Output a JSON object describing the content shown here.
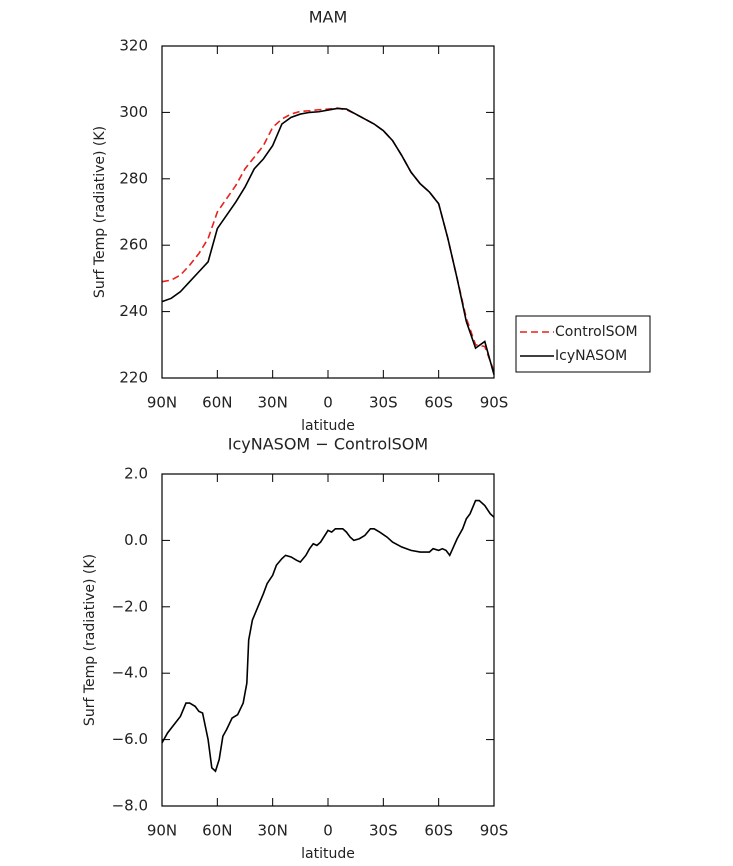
{
  "chart_data": [
    {
      "type": "line",
      "title": "MAM",
      "xlabel": "latitude",
      "ylabel": "Surf Temp (radiative) (K)",
      "x": [
        90,
        85,
        80,
        75,
        70,
        65,
        60,
        55,
        50,
        45,
        40,
        35,
        30,
        25,
        20,
        15,
        10,
        5,
        0,
        -5,
        -10,
        -15,
        -20,
        -25,
        -30,
        -35,
        -40,
        -45,
        -50,
        -55,
        -60,
        -65,
        -70,
        -75,
        -80,
        -85,
        -90
      ],
      "series": [
        {
          "name": "ControlSOM",
          "color": "#e8211b",
          "dash": true,
          "values": [
            249,
            249.5,
            251,
            254,
            257.5,
            262,
            270,
            274,
            278,
            283,
            286.5,
            290,
            295.5,
            298,
            299.5,
            300.3,
            300.5,
            300.8,
            301,
            301.3,
            300.8,
            299.5,
            298,
            296.5,
            294.5,
            291.5,
            287,
            282,
            278.5,
            276,
            272.5,
            262,
            250,
            238,
            230,
            229.5,
            222
          ]
        },
        {
          "name": "IcyNASOM",
          "color": "#000000",
          "dash": false,
          "values": [
            243,
            244,
            246,
            249,
            252,
            255,
            265,
            269,
            273,
            277.5,
            283,
            286,
            290,
            296.5,
            298.5,
            299.5,
            300,
            300.2,
            300.7,
            301.2,
            301,
            299.5,
            298,
            296.5,
            294.5,
            291.5,
            287,
            282,
            278.5,
            276,
            272.5,
            262,
            250,
            237,
            229,
            231,
            221
          ]
        }
      ],
      "xlim": [
        90,
        -90
      ],
      "xticks": [
        {
          "value": 90,
          "label": "90N"
        },
        {
          "value": 60,
          "label": "60N"
        },
        {
          "value": 30,
          "label": "30N"
        },
        0,
        {
          "value": -30,
          "label": "30S"
        },
        {
          "value": -60,
          "label": "60S"
        },
        {
          "value": -90,
          "label": "90S"
        }
      ],
      "ylim": [
        220,
        320
      ],
      "yticks": [
        220,
        240,
        260,
        280,
        300,
        320
      ],
      "legend": "right"
    },
    {
      "type": "line",
      "title": "IcyNASOM − ControlSOM",
      "xlabel": "latitude",
      "ylabel": "Surf Temp (radiative) (K)",
      "x": [
        90,
        87,
        80,
        77,
        75,
        72,
        70,
        68,
        65,
        63,
        61,
        59,
        57,
        55,
        52,
        49,
        46,
        44,
        43,
        41,
        38,
        35,
        33,
        30,
        28,
        25,
        23,
        20,
        17,
        15,
        12,
        10,
        8,
        6,
        4,
        0,
        -2,
        -4,
        -8,
        -10,
        -12,
        -14,
        -17,
        -20,
        -23,
        -25,
        -28,
        -32,
        -35,
        -40,
        -45,
        -50,
        -55,
        -57,
        -60,
        -62,
        -64,
        -66,
        -68,
        -70,
        -73,
        -75,
        -77,
        -80,
        -82,
        -85,
        -88,
        -90
      ],
      "series": [
        {
          "name": "IcyNASOM − ControlSOM",
          "color": "#000000",
          "dash": false,
          "values": [
            -6.1,
            -5.8,
            -5.3,
            -4.9,
            -4.9,
            -5.0,
            -5.15,
            -5.2,
            -6.0,
            -6.85,
            -6.95,
            -6.6,
            -5.9,
            -5.7,
            -5.35,
            -5.25,
            -4.9,
            -4.3,
            -3.0,
            -2.4,
            -2.0,
            -1.6,
            -1.3,
            -1.05,
            -0.75,
            -0.55,
            -0.45,
            -0.5,
            -0.6,
            -0.65,
            -0.45,
            -0.25,
            -0.1,
            -0.15,
            -0.05,
            0.3,
            0.25,
            0.35,
            0.35,
            0.25,
            0.1,
            0.0,
            0.05,
            0.15,
            0.35,
            0.35,
            0.25,
            0.1,
            -0.05,
            -0.2,
            -0.3,
            -0.35,
            -0.35,
            -0.25,
            -0.3,
            -0.25,
            -0.3,
            -0.45,
            -0.2,
            0.05,
            0.35,
            0.65,
            0.8,
            1.2,
            1.2,
            1.05,
            0.8,
            0.7
          ]
        }
      ],
      "xlim": [
        90,
        -90
      ],
      "xticks": [
        {
          "value": 90,
          "label": "90N"
        },
        {
          "value": 60,
          "label": "60N"
        },
        {
          "value": 30,
          "label": "30N"
        },
        0,
        {
          "value": -30,
          "label": "30S"
        },
        {
          "value": -60,
          "label": "60S"
        },
        {
          "value": -90,
          "label": "90S"
        }
      ],
      "ylim": [
        -8,
        2
      ],
      "yticks": [
        {
          "value": -8,
          "label": "−8.0"
        },
        {
          "value": -6,
          "label": "−6.0"
        },
        {
          "value": -4,
          "label": "−4.0"
        },
        {
          "value": -2,
          "label": "−2.0"
        },
        {
          "value": 0,
          "label": "0.0"
        },
        {
          "value": 2,
          "label": "2.0"
        }
      ]
    }
  ]
}
